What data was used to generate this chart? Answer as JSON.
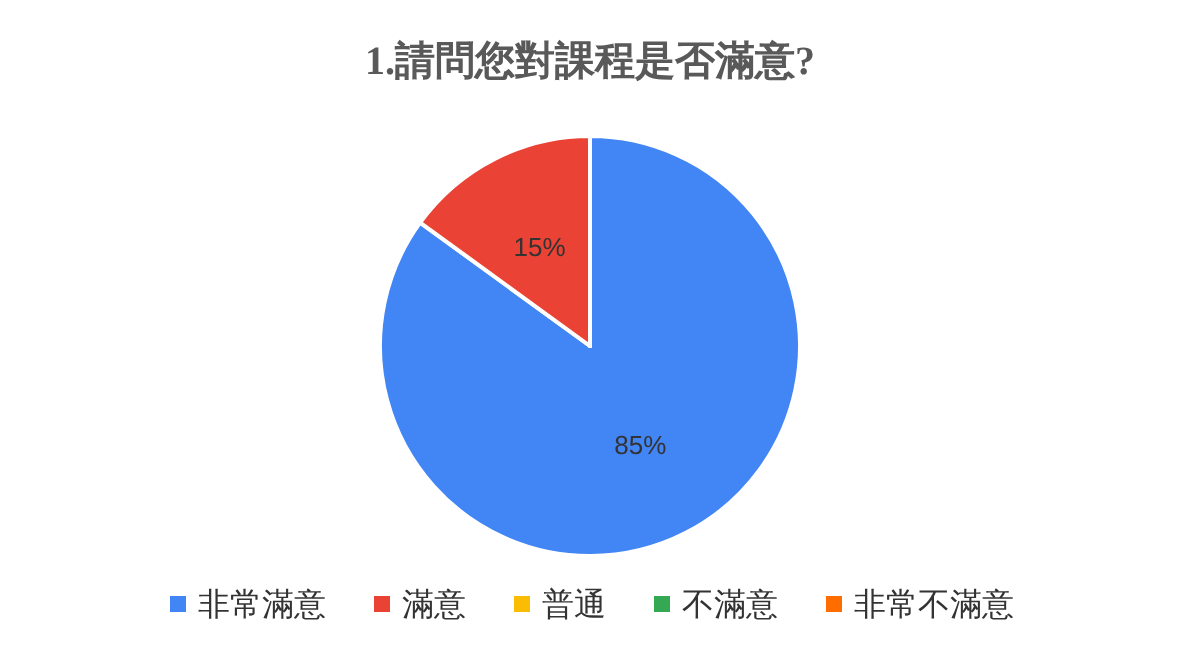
{
  "chart_data": {
    "type": "pie",
    "title": "1.請問您對課程是否滿意?",
    "categories": [
      "非常滿意",
      "滿意",
      "普通",
      "不滿意",
      "非常不滿意"
    ],
    "values": [
      85,
      15,
      0,
      0,
      0
    ],
    "colors": [
      "#4285f4",
      "#ea4335",
      "#fbbc04",
      "#34a853",
      "#ff6d01"
    ],
    "value_labels": [
      "85%",
      "15%",
      null,
      null,
      null
    ],
    "legend": "bottom"
  }
}
